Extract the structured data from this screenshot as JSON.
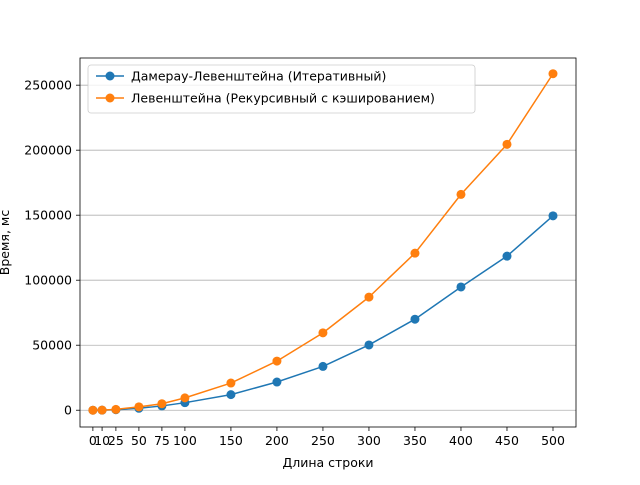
{
  "chart_data": {
    "type": "line",
    "title": "",
    "xlabel": "Длина строки",
    "ylabel": "Время, мс",
    "x": [
      0,
      10,
      25,
      50,
      75,
      100,
      150,
      200,
      250,
      300,
      350,
      400,
      450,
      500
    ],
    "xticks": [
      0,
      10,
      25,
      50,
      75,
      100,
      150,
      200,
      250,
      300,
      350,
      400,
      450,
      500
    ],
    "yticks": [
      0,
      50000,
      100000,
      150000,
      200000,
      250000
    ],
    "xlim": [
      -14,
      525
    ],
    "ylim": [
      -12900,
      270900
    ],
    "grid": "horizontal",
    "legend_position": "top-left",
    "series": [
      {
        "name": "Дамерау-Левенштейна (Итеративный)",
        "color": "#1f77b4",
        "values": [
          0,
          60,
          370,
          1500,
          3300,
          5800,
          12000,
          21700,
          33700,
          50200,
          70000,
          94800,
          118500,
          149500
        ]
      },
      {
        "name": "Левенштейна (Рекурсивный с кэшированием)",
        "color": "#ff7f0e",
        "values": [
          0,
          100,
          650,
          2600,
          5000,
          9500,
          20900,
          37800,
          59500,
          87000,
          120800,
          166000,
          204500,
          258800
        ]
      }
    ]
  }
}
